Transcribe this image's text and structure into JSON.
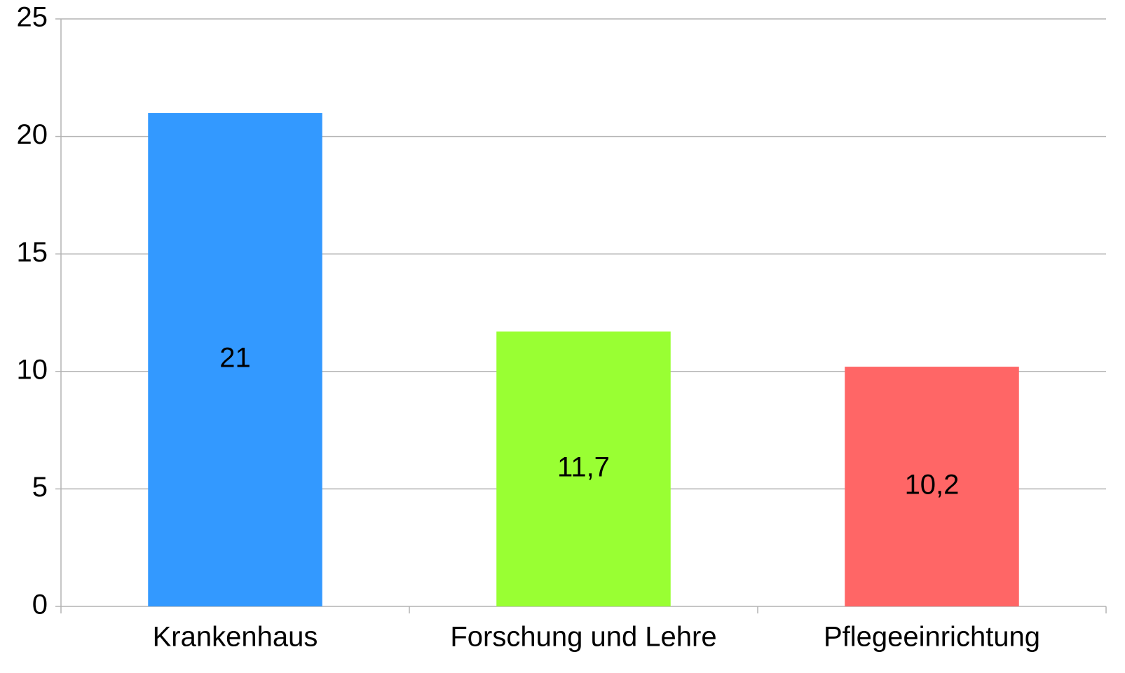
{
  "chart_data": {
    "type": "bar",
    "categories": [
      "Krankenhaus",
      "Forschung und Lehre",
      "Pflegeeinrichtung"
    ],
    "values": [
      21,
      11.7,
      10.2
    ],
    "value_labels": [
      "21",
      "11,7",
      "10,2"
    ],
    "colors": [
      "#3399ff",
      "#99ff33",
      "#ff6666"
    ],
    "ylim": [
      0,
      25
    ],
    "yticks": [
      0,
      5,
      10,
      15,
      20,
      25
    ],
    "grid": true
  }
}
